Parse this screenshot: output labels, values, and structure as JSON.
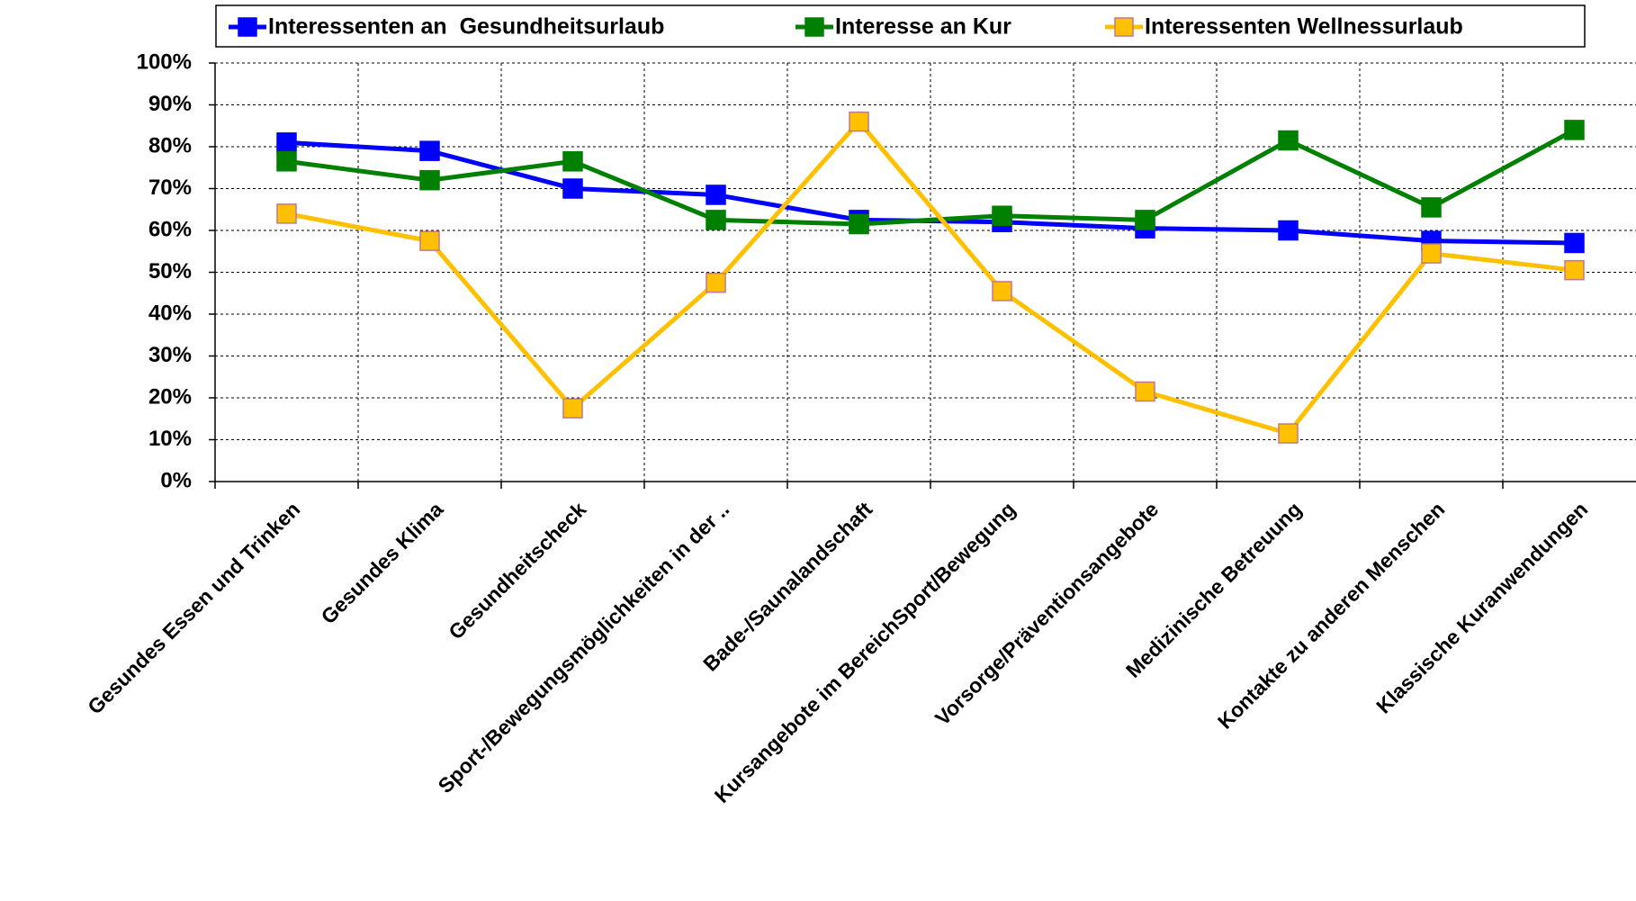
{
  "chart_data": {
    "type": "line",
    "categories": [
      "Gesundes Essen und Trinken",
      "Gesundes Klima",
      "Gesundheitscheck",
      "Sport-/Bewegungsmöglichkeiten in der ..",
      "Bade-/Saunalandschaft",
      "Kursangebote im BereichSport/Bewegung",
      "Vorsorge/Präventionsangebote",
      "Medizinische Betreuung",
      "Kontakte zu anderen Menschen",
      "Klassische Kuranwendungen"
    ],
    "series": [
      {
        "name": "Interessenten an  Gesundheitsurlaub",
        "color": "#0000ff",
        "marker_edge": "#0000ff",
        "values": [
          81,
          79,
          70,
          68.5,
          62.5,
          62,
          60.5,
          60,
          57.5,
          57
        ]
      },
      {
        "name": "Interesse an Kur",
        "color": "#008000",
        "marker_edge": "#008000",
        "values": [
          76.5,
          72,
          76.5,
          62.5,
          61.5,
          63.5,
          62.5,
          81.5,
          65.5,
          84
        ]
      },
      {
        "name": "Interessenten Wellnessurlaub",
        "color": "#ffc000",
        "marker_edge": "#c07890",
        "values": [
          64,
          57.5,
          17.5,
          47.5,
          86,
          45.5,
          21.5,
          11.5,
          54.5,
          50.5
        ]
      }
    ],
    "ylim": [
      0,
      100
    ],
    "yticks": [
      {
        "value": 0,
        "label": "0%"
      },
      {
        "value": 10,
        "label": "10%"
      },
      {
        "value": 20,
        "label": "20%"
      },
      {
        "value": 30,
        "label": "30%"
      },
      {
        "value": 40,
        "label": "40%"
      },
      {
        "value": 50,
        "label": "50%"
      },
      {
        "value": 60,
        "label": "60%"
      },
      {
        "value": 70,
        "label": "70%"
      },
      {
        "value": 80,
        "label": "80%"
      },
      {
        "value": 90,
        "label": "90%"
      },
      {
        "value": 100,
        "label": "100%"
      }
    ],
    "grid": true,
    "legend": "top"
  }
}
